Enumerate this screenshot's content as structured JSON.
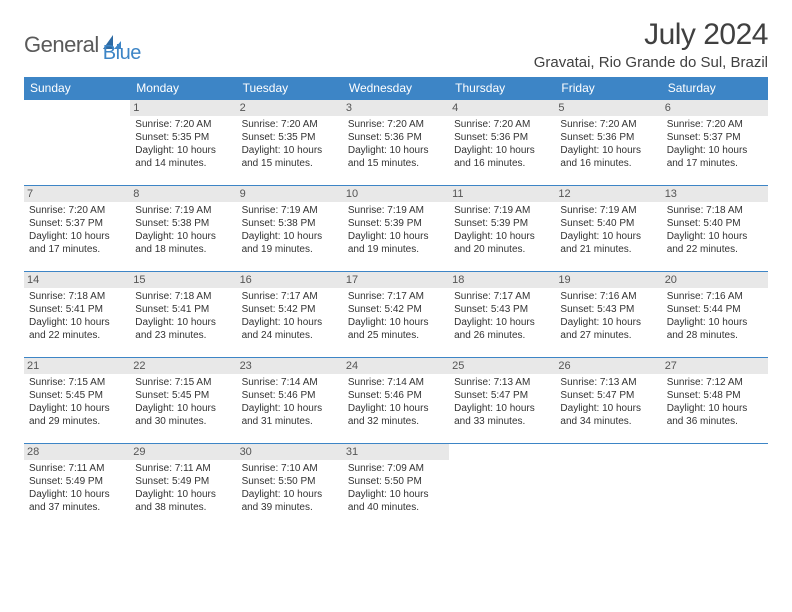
{
  "logo": {
    "part1": "General",
    "part2": "Blue"
  },
  "title": "July 2024",
  "location": "Gravatai, Rio Grande do Sul, Brazil",
  "colors": {
    "header_bg": "#3d85c6",
    "header_text": "#ffffff",
    "daynum_bg": "#e8e8e8",
    "row_border": "#3d85c6",
    "logo_gray": "#5a5a5a",
    "logo_blue": "#3d85c6",
    "page_bg": "#ffffff",
    "text": "#333333"
  },
  "fonts": {
    "title_size": 30,
    "location_size": 15,
    "header_size": 12,
    "cell_size": 10
  },
  "day_headers": [
    "Sunday",
    "Monday",
    "Tuesday",
    "Wednesday",
    "Thursday",
    "Friday",
    "Saturday"
  ],
  "weeks": [
    [
      {
        "n": "",
        "sr": "",
        "ss": "",
        "dl": ""
      },
      {
        "n": "1",
        "sr": "Sunrise: 7:20 AM",
        "ss": "Sunset: 5:35 PM",
        "dl": "Daylight: 10 hours and 14 minutes."
      },
      {
        "n": "2",
        "sr": "Sunrise: 7:20 AM",
        "ss": "Sunset: 5:35 PM",
        "dl": "Daylight: 10 hours and 15 minutes."
      },
      {
        "n": "3",
        "sr": "Sunrise: 7:20 AM",
        "ss": "Sunset: 5:36 PM",
        "dl": "Daylight: 10 hours and 15 minutes."
      },
      {
        "n": "4",
        "sr": "Sunrise: 7:20 AM",
        "ss": "Sunset: 5:36 PM",
        "dl": "Daylight: 10 hours and 16 minutes."
      },
      {
        "n": "5",
        "sr": "Sunrise: 7:20 AM",
        "ss": "Sunset: 5:36 PM",
        "dl": "Daylight: 10 hours and 16 minutes."
      },
      {
        "n": "6",
        "sr": "Sunrise: 7:20 AM",
        "ss": "Sunset: 5:37 PM",
        "dl": "Daylight: 10 hours and 17 minutes."
      }
    ],
    [
      {
        "n": "7",
        "sr": "Sunrise: 7:20 AM",
        "ss": "Sunset: 5:37 PM",
        "dl": "Daylight: 10 hours and 17 minutes."
      },
      {
        "n": "8",
        "sr": "Sunrise: 7:19 AM",
        "ss": "Sunset: 5:38 PM",
        "dl": "Daylight: 10 hours and 18 minutes."
      },
      {
        "n": "9",
        "sr": "Sunrise: 7:19 AM",
        "ss": "Sunset: 5:38 PM",
        "dl": "Daylight: 10 hours and 19 minutes."
      },
      {
        "n": "10",
        "sr": "Sunrise: 7:19 AM",
        "ss": "Sunset: 5:39 PM",
        "dl": "Daylight: 10 hours and 19 minutes."
      },
      {
        "n": "11",
        "sr": "Sunrise: 7:19 AM",
        "ss": "Sunset: 5:39 PM",
        "dl": "Daylight: 10 hours and 20 minutes."
      },
      {
        "n": "12",
        "sr": "Sunrise: 7:19 AM",
        "ss": "Sunset: 5:40 PM",
        "dl": "Daylight: 10 hours and 21 minutes."
      },
      {
        "n": "13",
        "sr": "Sunrise: 7:18 AM",
        "ss": "Sunset: 5:40 PM",
        "dl": "Daylight: 10 hours and 22 minutes."
      }
    ],
    [
      {
        "n": "14",
        "sr": "Sunrise: 7:18 AM",
        "ss": "Sunset: 5:41 PM",
        "dl": "Daylight: 10 hours and 22 minutes."
      },
      {
        "n": "15",
        "sr": "Sunrise: 7:18 AM",
        "ss": "Sunset: 5:41 PM",
        "dl": "Daylight: 10 hours and 23 minutes."
      },
      {
        "n": "16",
        "sr": "Sunrise: 7:17 AM",
        "ss": "Sunset: 5:42 PM",
        "dl": "Daylight: 10 hours and 24 minutes."
      },
      {
        "n": "17",
        "sr": "Sunrise: 7:17 AM",
        "ss": "Sunset: 5:42 PM",
        "dl": "Daylight: 10 hours and 25 minutes."
      },
      {
        "n": "18",
        "sr": "Sunrise: 7:17 AM",
        "ss": "Sunset: 5:43 PM",
        "dl": "Daylight: 10 hours and 26 minutes."
      },
      {
        "n": "19",
        "sr": "Sunrise: 7:16 AM",
        "ss": "Sunset: 5:43 PM",
        "dl": "Daylight: 10 hours and 27 minutes."
      },
      {
        "n": "20",
        "sr": "Sunrise: 7:16 AM",
        "ss": "Sunset: 5:44 PM",
        "dl": "Daylight: 10 hours and 28 minutes."
      }
    ],
    [
      {
        "n": "21",
        "sr": "Sunrise: 7:15 AM",
        "ss": "Sunset: 5:45 PM",
        "dl": "Daylight: 10 hours and 29 minutes."
      },
      {
        "n": "22",
        "sr": "Sunrise: 7:15 AM",
        "ss": "Sunset: 5:45 PM",
        "dl": "Daylight: 10 hours and 30 minutes."
      },
      {
        "n": "23",
        "sr": "Sunrise: 7:14 AM",
        "ss": "Sunset: 5:46 PM",
        "dl": "Daylight: 10 hours and 31 minutes."
      },
      {
        "n": "24",
        "sr": "Sunrise: 7:14 AM",
        "ss": "Sunset: 5:46 PM",
        "dl": "Daylight: 10 hours and 32 minutes."
      },
      {
        "n": "25",
        "sr": "Sunrise: 7:13 AM",
        "ss": "Sunset: 5:47 PM",
        "dl": "Daylight: 10 hours and 33 minutes."
      },
      {
        "n": "26",
        "sr": "Sunrise: 7:13 AM",
        "ss": "Sunset: 5:47 PM",
        "dl": "Daylight: 10 hours and 34 minutes."
      },
      {
        "n": "27",
        "sr": "Sunrise: 7:12 AM",
        "ss": "Sunset: 5:48 PM",
        "dl": "Daylight: 10 hours and 36 minutes."
      }
    ],
    [
      {
        "n": "28",
        "sr": "Sunrise: 7:11 AM",
        "ss": "Sunset: 5:49 PM",
        "dl": "Daylight: 10 hours and 37 minutes."
      },
      {
        "n": "29",
        "sr": "Sunrise: 7:11 AM",
        "ss": "Sunset: 5:49 PM",
        "dl": "Daylight: 10 hours and 38 minutes."
      },
      {
        "n": "30",
        "sr": "Sunrise: 7:10 AM",
        "ss": "Sunset: 5:50 PM",
        "dl": "Daylight: 10 hours and 39 minutes."
      },
      {
        "n": "31",
        "sr": "Sunrise: 7:09 AM",
        "ss": "Sunset: 5:50 PM",
        "dl": "Daylight: 10 hours and 40 minutes."
      },
      {
        "n": "",
        "sr": "",
        "ss": "",
        "dl": ""
      },
      {
        "n": "",
        "sr": "",
        "ss": "",
        "dl": ""
      },
      {
        "n": "",
        "sr": "",
        "ss": "",
        "dl": ""
      }
    ]
  ]
}
